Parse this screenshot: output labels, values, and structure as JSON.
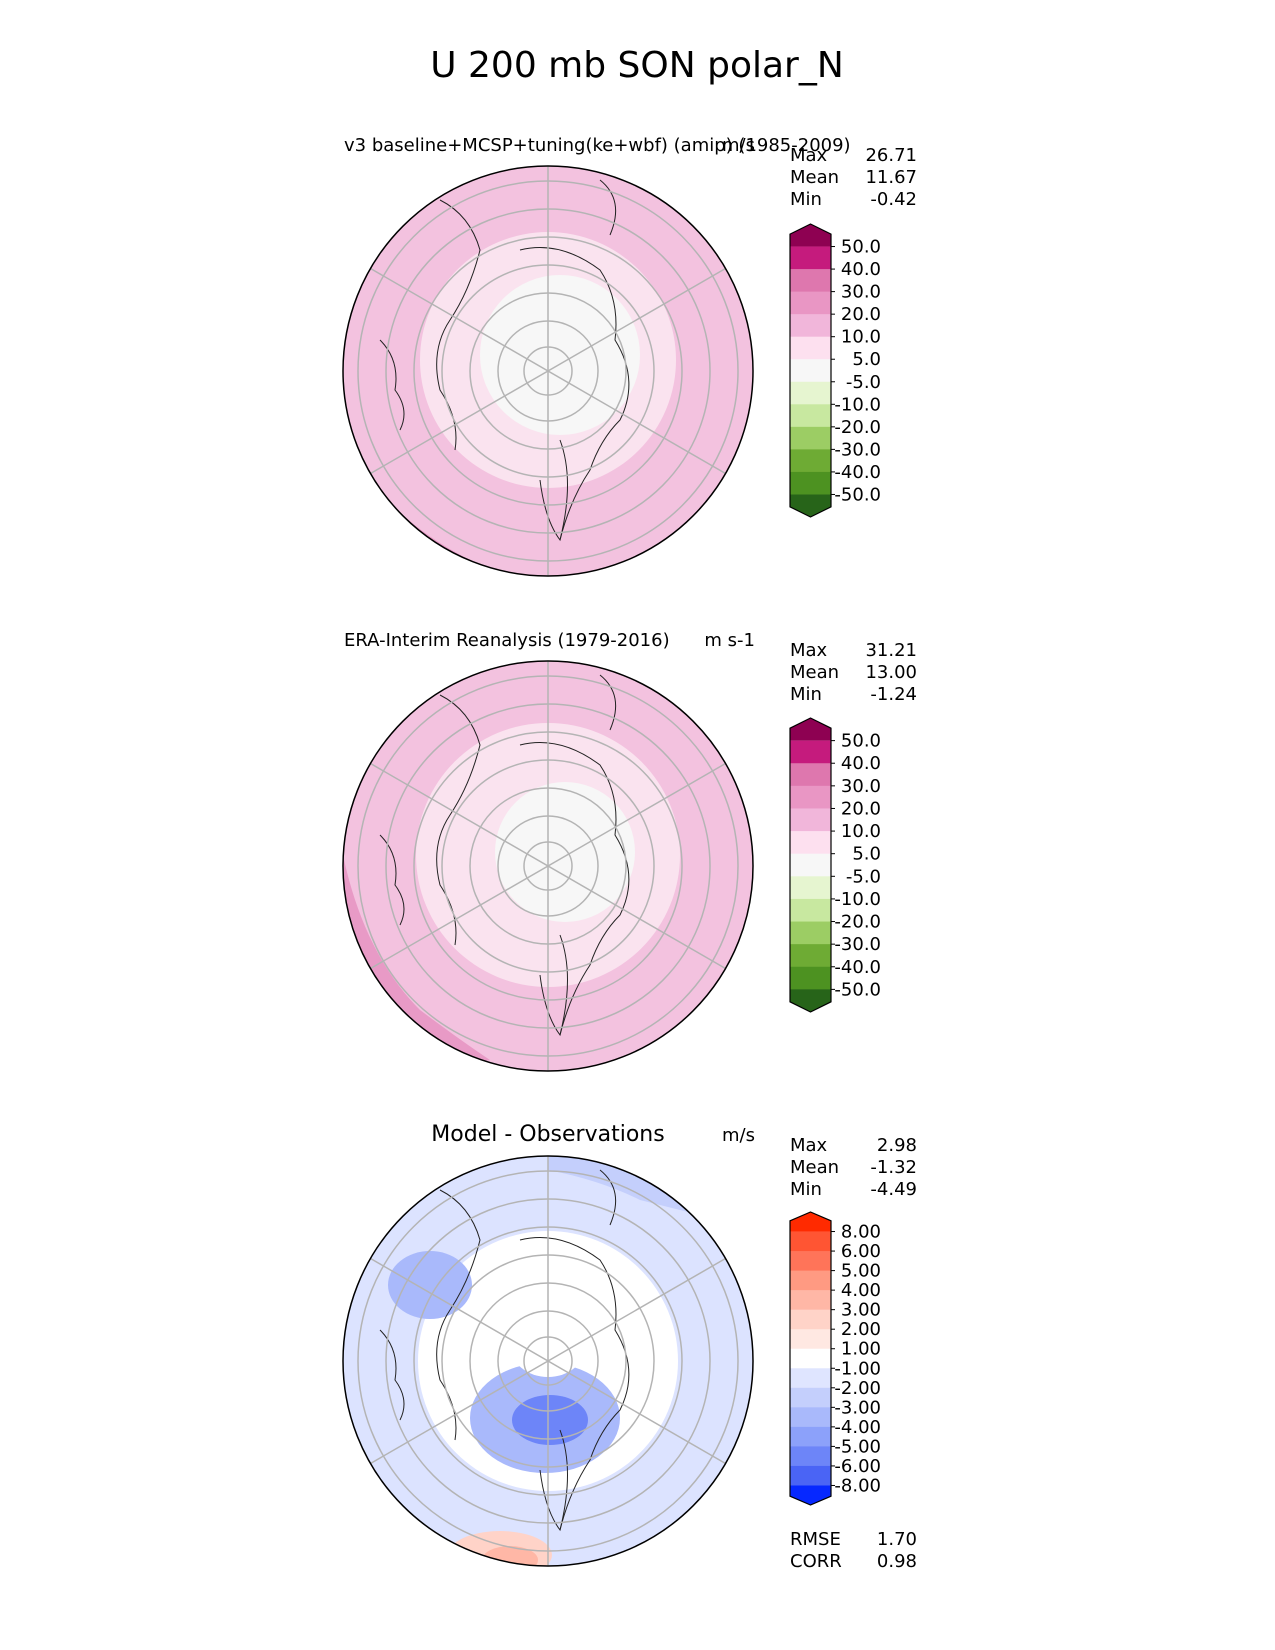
{
  "figure_title": "U 200 mb SON polar_N",
  "chart_data": [
    {
      "type": "heatmap",
      "projection": "north-polar-stereographic",
      "title": "v3 baseline+MCSP+tuning(ke+wbf) (amip) (1985-2009)",
      "units": "m/s",
      "stats": [
        {
          "label": "Max",
          "value": "26.71"
        },
        {
          "label": "Mean",
          "value": "11.67"
        },
        {
          "label": "Min",
          "value": "-0.42"
        }
      ],
      "colorbar": {
        "ticks": [
          "50.0",
          "40.0",
          "30.0",
          "20.0",
          "10.0",
          "5.0",
          "-5.0",
          "-10.0",
          "-20.0",
          "-30.0",
          "-40.0",
          "-50.0"
        ],
        "colors": [
          "#8e0152",
          "#c51b7d",
          "#de77ae",
          "#e996c4",
          "#f1b6da",
          "#fde0ef",
          "#f7f7f7",
          "#e6f5d0",
          "#c8e8a0",
          "#9ccd64",
          "#6eab34",
          "#4d9221",
          "#276419"
        ]
      },
      "fields": [
        {
          "r": 1.0,
          "color": "#f3c2df"
        },
        {
          "r": 0.68,
          "color": "#fae3ef"
        },
        {
          "r": 0.36,
          "color": "#f7f7f7"
        }
      ]
    },
    {
      "type": "heatmap",
      "projection": "north-polar-stereographic",
      "title": "ERA-Interim Reanalysis (1979-2016)",
      "units": "m s-1",
      "stats": [
        {
          "label": "Max",
          "value": "31.21"
        },
        {
          "label": "Mean",
          "value": "13.00"
        },
        {
          "label": "Min",
          "value": "-1.24"
        }
      ],
      "colorbar": {
        "ticks": [
          "50.0",
          "40.0",
          "30.0",
          "20.0",
          "10.0",
          "5.0",
          "-5.0",
          "-10.0",
          "-20.0",
          "-30.0",
          "-40.0",
          "-50.0"
        ],
        "colors": [
          "#8e0152",
          "#c51b7d",
          "#de77ae",
          "#e996c4",
          "#f1b6da",
          "#fde0ef",
          "#f7f7f7",
          "#e6f5d0",
          "#c8e8a0",
          "#9ccd64",
          "#6eab34",
          "#4d9221",
          "#276419"
        ]
      },
      "fields": [
        {
          "r": 1.0,
          "color": "#f3c2df"
        },
        {
          "r": 0.66,
          "color": "#fae3ef"
        },
        {
          "r": 0.33,
          "color": "#f7f7f7"
        }
      ]
    },
    {
      "type": "heatmap",
      "projection": "north-polar-stereographic",
      "title": "Model - Observations",
      "units": "m/s",
      "stats": [
        {
          "label": "Max",
          "value": "2.98"
        },
        {
          "label": "Mean",
          "value": "-1.32"
        },
        {
          "label": "Min",
          "value": "-4.49"
        }
      ],
      "extra_stats": [
        {
          "label": "RMSE",
          "value": "1.70"
        },
        {
          "label": "CORR",
          "value": "0.98"
        }
      ],
      "colorbar": {
        "ticks": [
          "8.00",
          "6.00",
          "5.00",
          "4.00",
          "3.00",
          "2.00",
          "1.00",
          "-1.00",
          "-2.00",
          "-3.00",
          "-4.00",
          "-5.00",
          "-6.00",
          "-8.00"
        ],
        "colors": [
          "#ff2a00",
          "#ff5533",
          "#ff7459",
          "#ff9a82",
          "#ffb7a6",
          "#ffd3c8",
          "#ffe8e2",
          "#ffffff",
          "#dfe5ff",
          "#c4cffc",
          "#a9b9fb",
          "#8ca1fa",
          "#6d85f8",
          "#4a64f5",
          "#0628ff"
        ]
      },
      "fields": [
        {
          "r": 1.0,
          "color": "#dce3ff"
        },
        {
          "r": 0.62,
          "color": "#ffffff"
        },
        {
          "r": 0.2,
          "color": "#dce3ff"
        }
      ]
    }
  ]
}
